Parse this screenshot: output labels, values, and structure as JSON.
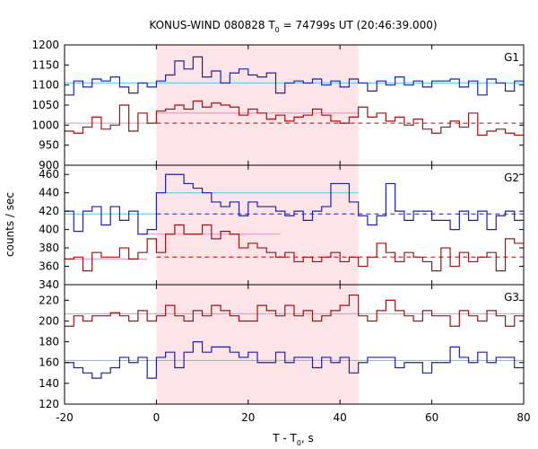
{
  "chart_data": {
    "type": "line",
    "title": "KONUS-WIND 080828 T",
    "title_sub": "0",
    "title_rest": " = 74799s UT (20:46:39.000)",
    "xlabel": "T - T",
    "xlabel_sub": "0",
    "xlabel_rest": ", s",
    "ylabel": "counts / sec",
    "xlim": [
      -20,
      80
    ],
    "x_ticks": [
      -20,
      0,
      20,
      40,
      60,
      80
    ],
    "x_tick_labels": [
      "-20",
      "0",
      "20",
      "40",
      "60",
      "80"
    ],
    "highlight_interval": [
      0,
      44
    ],
    "highlight_color": "#fde4e8",
    "bin_edges": [
      -20,
      -18,
      -16,
      -14,
      -12,
      -10,
      -8,
      -6,
      -4,
      -2,
      0,
      2,
      4,
      6,
      8,
      10,
      12,
      14,
      16,
      18,
      20,
      22,
      24,
      26,
      28,
      30,
      32,
      34,
      36,
      38,
      40,
      42,
      44,
      46,
      48,
      50,
      52,
      54,
      56,
      58,
      60,
      62,
      64,
      66,
      68,
      70,
      72,
      74,
      76,
      78,
      80
    ],
    "panels": [
      {
        "label": "G1",
        "ylim": [
          900,
          1200
        ],
        "y_ticks": [
          900,
          950,
          1000,
          1050,
          1100,
          1150,
          1200
        ],
        "y_tick_labels": [
          "900",
          "950",
          "1000",
          "1050",
          "1100",
          "1150",
          "1200"
        ],
        "series": [
          {
            "color": "#1f1fa8",
            "values": [
              1075,
              1110,
              1095,
              1115,
              1110,
              1120,
              1095,
              1080,
              1105,
              1095,
              1110,
              1125,
              1160,
              1140,
              1170,
              1120,
              1135,
              1105,
              1130,
              1140,
              1125,
              1120,
              1130,
              1080,
              1105,
              1110,
              1105,
              1115,
              1100,
              1110,
              1095,
              1115,
              1105,
              1085,
              1110,
              1100,
              1120,
              1100,
              1110,
              1095,
              1110,
              1110,
              1115,
              1095,
              1110,
              1075,
              1115,
              1105,
              1085,
              1110
            ]
          },
          {
            "color": "#a01010",
            "values": [
              985,
              980,
              995,
              1020,
              990,
              1000,
              1050,
              985,
              1030,
              1005,
              1035,
              1040,
              1050,
              1040,
              1060,
              1045,
              1055,
              1050,
              1045,
              1025,
              1040,
              1030,
              1015,
              1025,
              1010,
              1020,
              1025,
              1040,
              1025,
              1010,
              1005,
              1020,
              1045,
              1020,
              1030,
              1010,
              1020,
              1000,
              1015,
              990,
              980,
              995,
              1010,
              995,
              1030,
              975,
              985,
              990,
              980,
              975
            ]
          }
        ],
        "levels": [
          {
            "color": "#58c8e0",
            "style": "solid",
            "from": -20,
            "to": 80,
            "value": 1105
          },
          {
            "color": "#e090c8",
            "style": "solid",
            "from": -20,
            "to": 0,
            "value": 1005
          },
          {
            "color": "#e090c8",
            "style": "solid",
            "from": 0,
            "to": 44,
            "value": 1030
          },
          {
            "color": "#a01010",
            "style": "dashed",
            "from": 0,
            "to": 80,
            "value": 1005
          }
        ]
      },
      {
        "label": "G2",
        "ylim": [
          340,
          470
        ],
        "y_ticks": [
          340,
          360,
          380,
          400,
          420,
          440,
          460
        ],
        "y_tick_labels": [
          "340",
          "360",
          "380",
          "400",
          "420",
          "440",
          "460"
        ],
        "series": [
          {
            "color": "#1f1fa8",
            "values": [
              420,
              398,
              420,
              425,
              405,
              425,
              410,
              420,
              395,
              400,
              440,
              460,
              460,
              450,
              445,
              440,
              430,
              425,
              430,
              415,
              430,
              425,
              425,
              420,
              415,
              420,
              410,
              420,
              425,
              450,
              450,
              430,
              415,
              405,
              415,
              450,
              420,
              410,
              420,
              420,
              410,
              410,
              400,
              420,
              410,
              420,
              400,
              415,
              420,
              410
            ]
          },
          {
            "color": "#a01010",
            "values": [
              368,
              370,
              355,
              375,
              370,
              370,
              380,
              368,
              375,
              390,
              375,
              395,
              405,
              395,
              395,
              405,
              390,
              398,
              395,
              380,
              385,
              380,
              375,
              370,
              375,
              365,
              370,
              365,
              370,
              375,
              365,
              370,
              360,
              370,
              385,
              375,
              365,
              375,
              370,
              365,
              355,
              380,
              360,
              375,
              365,
              370,
              375,
              355,
              390,
              385
            ]
          }
        ],
        "levels": [
          {
            "color": "#58c8e0",
            "style": "solid",
            "from": -20,
            "to": 0,
            "value": 417
          },
          {
            "color": "#58c8e0",
            "style": "solid",
            "from": 0,
            "to": 44,
            "value": 440
          },
          {
            "color": "#1f1fa8",
            "style": "dashed",
            "from": 0,
            "to": 80,
            "value": 417
          },
          {
            "color": "#e090c8",
            "style": "solid",
            "from": -20,
            "to": -2,
            "value": 368
          },
          {
            "color": "#e090c8",
            "style": "solid",
            "from": -2,
            "to": 27,
            "value": 395
          },
          {
            "color": "#a01010",
            "style": "dashed",
            "from": 0,
            "to": 80,
            "value": 370
          }
        ]
      },
      {
        "label": "G3",
        "ylim": [
          120,
          235
        ],
        "y_ticks": [
          120,
          140,
          160,
          180,
          200,
          220
        ],
        "y_tick_labels": [
          "120",
          "140",
          "160",
          "180",
          "200",
          "220"
        ],
        "series": [
          {
            "color": "#a01010",
            "values": [
              195,
              205,
              200,
              205,
              205,
              208,
              205,
              200,
              210,
              200,
              205,
              215,
              205,
              200,
              210,
              205,
              215,
              210,
              205,
              200,
              200,
              215,
              210,
              205,
              215,
              205,
              210,
              200,
              205,
              210,
              215,
              225,
              205,
              200,
              210,
              220,
              210,
              205,
              200,
              210,
              205,
              205,
              195,
              210,
              205,
              200,
              210,
              205,
              195,
              205
            ]
          },
          {
            "color": "#1f1fa8",
            "values": [
              160,
              155,
              150,
              145,
              150,
              155,
              165,
              160,
              165,
              145,
              165,
              170,
              155,
              170,
              180,
              170,
              175,
              175,
              170,
              165,
              170,
              160,
              160,
              170,
              160,
              165,
              165,
              155,
              165,
              160,
              165,
              150,
              160,
              165,
              165,
              165,
              155,
              160,
              160,
              150,
              160,
              160,
              175,
              165,
              160,
              170,
              160,
              165,
              165,
              155
            ]
          }
        ],
        "levels": [
          {
            "color": "#e090c8",
            "style": "solid",
            "from": -20,
            "to": 80,
            "value": 207
          },
          {
            "color": "#58c8e0",
            "style": "solid",
            "from": -20,
            "to": 80,
            "value": 162
          }
        ]
      }
    ]
  }
}
